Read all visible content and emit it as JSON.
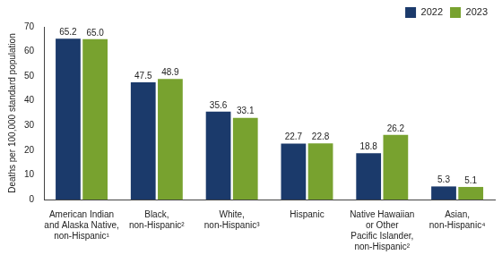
{
  "chart_data": {
    "type": "bar",
    "y_label": "Deaths per 100,000 standard population",
    "categories": [
      [
        "American Indian",
        "and Alaska Native,",
        "non-Hispanic¹"
      ],
      [
        "Black,",
        "non-Hispanic²"
      ],
      [
        "White,",
        "non-Hispanic³"
      ],
      [
        "Hispanic"
      ],
      [
        "Native Hawaiian",
        "or Other",
        "Pacific Islander,",
        "non-Hispanic²"
      ],
      [
        "Asian,",
        "non-Hispanic⁴"
      ]
    ],
    "series": [
      {
        "name": "2022",
        "color": "#1b3a6b",
        "values": [
          65.2,
          47.5,
          35.6,
          22.7,
          18.8,
          5.3
        ],
        "value_labels": [
          "65.2",
          "47.5",
          "35.6",
          "22.7",
          "18.8",
          "5.3"
        ]
      },
      {
        "name": "2023",
        "color": "#78a22f",
        "values": [
          65.0,
          48.9,
          33.1,
          22.8,
          26.2,
          5.1
        ],
        "value_labels": [
          "65.0",
          "48.9",
          "33.1",
          "22.8",
          "26.2",
          "5.1"
        ]
      }
    ],
    "ylim": [
      0,
      70
    ],
    "yticks": [
      0,
      10,
      20,
      30,
      40,
      50,
      60,
      70
    ],
    "grid": false,
    "legend": "top-right",
    "data_labels": true
  }
}
